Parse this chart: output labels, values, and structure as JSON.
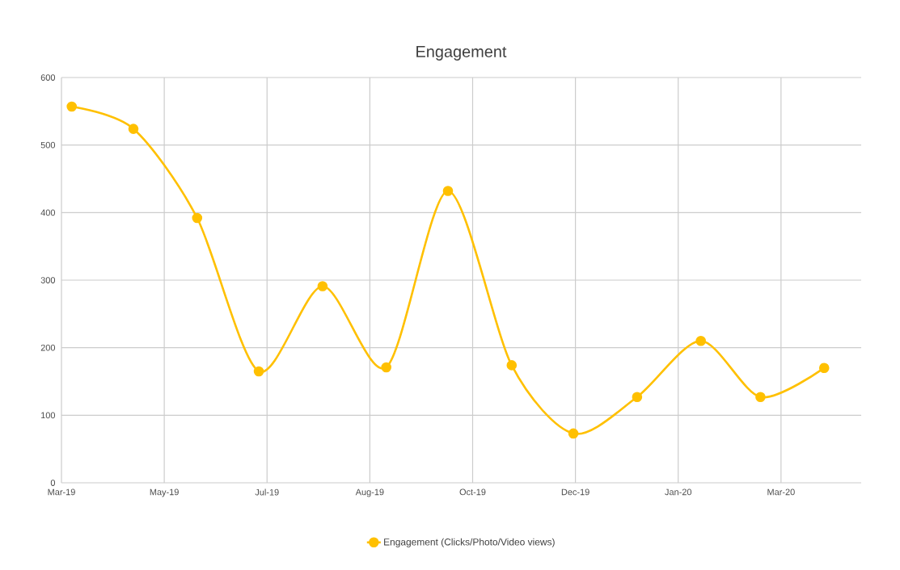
{
  "chart_data": {
    "type": "line",
    "title": "Engagement",
    "x": [
      "2019-04-01",
      "2019-05-01",
      "2019-06-01",
      "2019-07-01",
      "2019-08-01",
      "2019-09-01",
      "2019-10-01",
      "2019-11-01",
      "2019-12-01",
      "2020-01-01",
      "2020-02-01",
      "2020-03-01",
      "2020-04-01"
    ],
    "series": [
      {
        "name": "Engagement (Clicks/Photo/Video views)",
        "color": "#ffc000",
        "values": [
          557,
          524,
          392,
          165,
          291,
          171,
          432,
          174,
          73,
          127,
          210,
          127,
          170
        ]
      }
    ],
    "xlim": [
      "2019-03-27",
      "2020-04-19"
    ],
    "xticks": [
      {
        "value": "2019-03-27",
        "label": "Mar-19"
      },
      {
        "value": "2019-05-16",
        "label": "May-19"
      },
      {
        "value": "2019-07-05",
        "label": "Jul-19"
      },
      {
        "value": "2019-08-24",
        "label": "Aug-19"
      },
      {
        "value": "2019-10-13",
        "label": "Oct-19"
      },
      {
        "value": "2019-12-02",
        "label": "Dec-19"
      },
      {
        "value": "2020-01-21",
        "label": "Jan-20"
      },
      {
        "value": "2020-03-11",
        "label": "Mar-20"
      }
    ],
    "ylim": [
      0,
      600
    ],
    "yticks": [
      0,
      100,
      200,
      300,
      400,
      500,
      600
    ],
    "grid": true,
    "legend": "bottom",
    "marker": "circle",
    "line_style": "solid"
  }
}
